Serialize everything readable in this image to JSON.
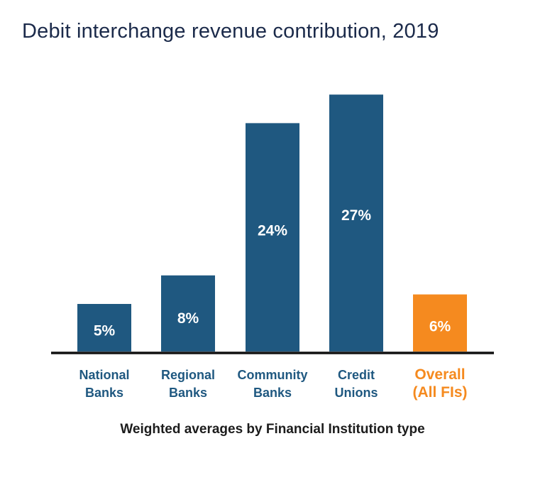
{
  "chart_data": {
    "type": "bar",
    "title": "Debit interchange revenue contribution, 2019",
    "xlabel": "Weighted averages by Financial Institution type",
    "ylabel": "",
    "ylim": [
      0,
      28
    ],
    "grid": false,
    "legend": "none",
    "categories": [
      [
        "National",
        "Banks"
      ],
      [
        "Regional",
        "Banks"
      ],
      [
        "Community",
        "Banks"
      ],
      [
        "Credit",
        "Unions"
      ],
      [
        "Overall",
        "(All FIs)"
      ]
    ],
    "values": [
      5,
      8,
      24,
      27,
      6
    ],
    "data_labels": [
      "5%",
      "8%",
      "24%",
      "27%",
      "6%"
    ],
    "colors": [
      "#1f5880",
      "#1f5880",
      "#1f5880",
      "#1f5880",
      "#f58a1f"
    ],
    "label_colors": [
      "#1f5880",
      "#1f5880",
      "#1f5880",
      "#1f5880",
      "#f58a1f"
    ]
  }
}
